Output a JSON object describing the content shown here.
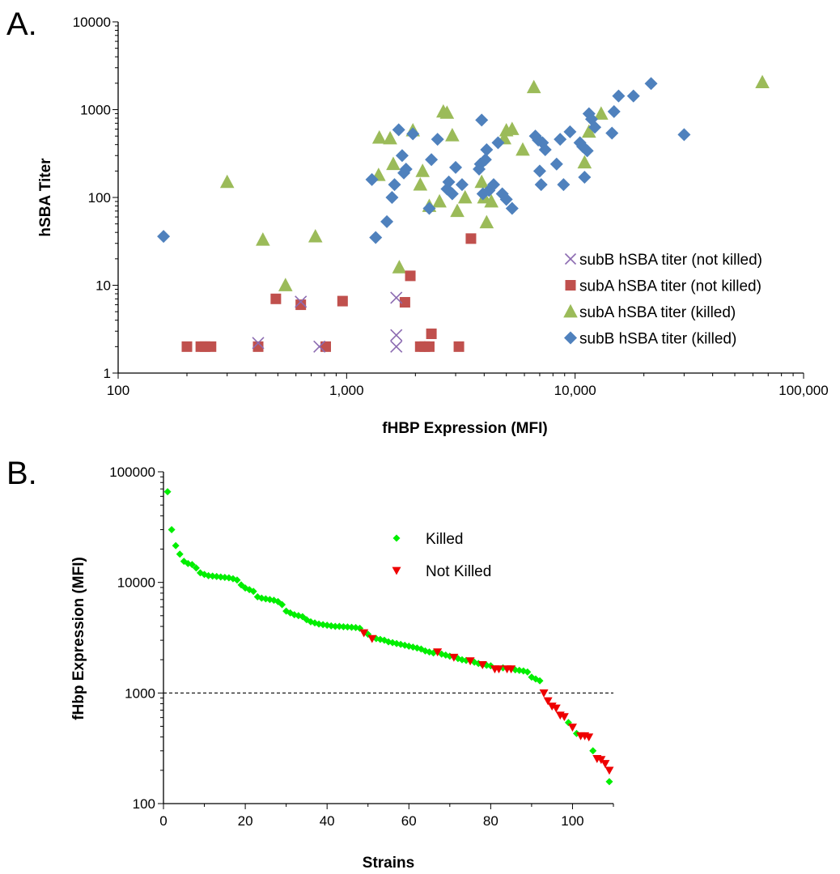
{
  "panels": {
    "a": {
      "letter": "A."
    },
    "b": {
      "letter": "B."
    }
  },
  "chart_data": [
    {
      "panel": "A.",
      "type": "scatter",
      "xlabel": "fHBP Expression (MFI)",
      "ylabel": "hSBA Titer",
      "xscale": "log",
      "yscale": "log",
      "xlim": [
        100,
        100000
      ],
      "ylim": [
        1,
        10000
      ],
      "xticks": [
        100,
        1000,
        10000,
        100000
      ],
      "xtick_labels": [
        "100",
        "1,000",
        "10,000",
        "100,000"
      ],
      "yticks": [
        1,
        10,
        100,
        1000,
        10000
      ],
      "ytick_labels": [
        "1",
        "10",
        "100",
        "1000",
        "10000"
      ],
      "grid": false,
      "legend_position": "bottom-right",
      "series": [
        {
          "name": "subB hSBA titer (not killed)",
          "marker": "x",
          "color": "#8c6bb1",
          "points": [
            [
              410,
              2.2
            ],
            [
              630,
              6.5
            ],
            [
              760,
              2
            ],
            [
              1650,
              2.7
            ],
            [
              1650,
              2
            ],
            [
              1650,
              7.2
            ]
          ]
        },
        {
          "name": "subA hSBA titer (not killed)",
          "marker": "square",
          "color": "#c0504d",
          "points": [
            [
              200,
              2
            ],
            [
              230,
              2
            ],
            [
              240,
              2
            ],
            [
              255,
              2
            ],
            [
              410,
              2
            ],
            [
              490,
              7
            ],
            [
              630,
              6
            ],
            [
              810,
              2
            ],
            [
              960,
              6.6
            ],
            [
              1800,
              6.4
            ],
            [
              1900,
              12.8
            ],
            [
              2100,
              2
            ],
            [
              2200,
              2
            ],
            [
              2300,
              2
            ],
            [
              2350,
              2.8
            ],
            [
              3100,
              2
            ],
            [
              3500,
              34
            ]
          ]
        },
        {
          "name": "subA hSBA titer (killed)",
          "marker": "triangle",
          "color": "#9bbb59",
          "points": [
            [
              300,
              150
            ],
            [
              430,
              33
            ],
            [
              540,
              10
            ],
            [
              730,
              36
            ],
            [
              1390,
              480
            ],
            [
              1380,
              180
            ],
            [
              1550,
              470
            ],
            [
              1600,
              240
            ],
            [
              1700,
              16
            ],
            [
              1950,
              580
            ],
            [
              2100,
              140
            ],
            [
              2150,
              200
            ],
            [
              2300,
              80
            ],
            [
              2550,
              90
            ],
            [
              2650,
              950
            ],
            [
              2750,
              920
            ],
            [
              2900,
              510
            ],
            [
              3050,
              70
            ],
            [
              3300,
              100
            ],
            [
              3900,
              150
            ],
            [
              4000,
              100
            ],
            [
              4100,
              52
            ],
            [
              4300,
              90
            ],
            [
              4900,
              470
            ],
            [
              5000,
              580
            ],
            [
              5300,
              600
            ],
            [
              5900,
              350
            ],
            [
              6600,
              1800
            ],
            [
              11000,
              250
            ],
            [
              11500,
              560
            ],
            [
              13000,
              900
            ],
            [
              66000,
              2050
            ]
          ]
        },
        {
          "name": "subB hSBA titer (killed)",
          "marker": "diamond",
          "color": "#4f81bd",
          "points": [
            [
              158,
              36
            ],
            [
              1290,
              160
            ],
            [
              1340,
              35
            ],
            [
              1500,
              53
            ],
            [
              1580,
              100
            ],
            [
              1620,
              140
            ],
            [
              1690,
              590
            ],
            [
              1750,
              300
            ],
            [
              1780,
              190
            ],
            [
              1820,
              210
            ],
            [
              1950,
              530
            ],
            [
              2300,
              75
            ],
            [
              2350,
              270
            ],
            [
              2500,
              460
            ],
            [
              2750,
              125
            ],
            [
              2800,
              150
            ],
            [
              2900,
              110
            ],
            [
              3000,
              220
            ],
            [
              3200,
              140
            ],
            [
              3800,
              210
            ],
            [
              3850,
              240
            ],
            [
              3900,
              760
            ],
            [
              3950,
              110
            ],
            [
              4050,
              270
            ],
            [
              4100,
              350
            ],
            [
              4200,
              120
            ],
            [
              4400,
              140
            ],
            [
              4600,
              420
            ],
            [
              4800,
              110
            ],
            [
              5000,
              95
            ],
            [
              5300,
              75
            ],
            [
              6700,
              500
            ],
            [
              6900,
              450
            ],
            [
              7000,
              200
            ],
            [
              7100,
              140
            ],
            [
              7200,
              420
            ],
            [
              7400,
              350
            ],
            [
              8300,
              240
            ],
            [
              8600,
              460
            ],
            [
              8900,
              140
            ],
            [
              9500,
              560
            ],
            [
              10500,
              420
            ],
            [
              10800,
              380
            ],
            [
              11000,
              170
            ],
            [
              11300,
              340
            ],
            [
              11500,
              900
            ],
            [
              11800,
              780
            ],
            [
              12200,
              630
            ],
            [
              14500,
              540
            ],
            [
              14800,
              950
            ],
            [
              15500,
              1430
            ],
            [
              18000,
              1430
            ],
            [
              21500,
              1980
            ],
            [
              30000,
              520
            ]
          ]
        }
      ]
    },
    {
      "panel": "B.",
      "type": "scatter",
      "xlabel": "Strains",
      "ylabel": "fHbp Expression (MFI)",
      "yscale": "log",
      "xlim": [
        0,
        110
      ],
      "ylim": [
        100,
        100000
      ],
      "xticks": [
        0,
        20,
        40,
        60,
        80,
        100
      ],
      "xtick_labels": [
        "0",
        "20",
        "40",
        "60",
        "80",
        "100"
      ],
      "yticks": [
        100,
        1000,
        10000,
        100000
      ],
      "ytick_labels": [
        "100",
        "1000",
        "10000",
        "100000"
      ],
      "grid": false,
      "legend_position": "top-center",
      "reference_line": {
        "y": 1000,
        "style": "dashed"
      },
      "series": [
        {
          "name": "Killed",
          "marker": "diamond",
          "color": "#00ee00",
          "points": [
            [
              1,
              66000
            ],
            [
              2,
              30000
            ],
            [
              3,
              21500
            ],
            [
              4,
              18000
            ],
            [
              5,
              15500
            ],
            [
              6,
              14800
            ],
            [
              7,
              14500
            ],
            [
              8,
              13500
            ],
            [
              9,
              12200
            ],
            [
              10,
              11800
            ],
            [
              11,
              11500
            ],
            [
              12,
              11400
            ],
            [
              13,
              11300
            ],
            [
              14,
              11200
            ],
            [
              15,
              11100
            ],
            [
              16,
              11000
            ],
            [
              17,
              10800
            ],
            [
              18,
              10500
            ],
            [
              19,
              9500
            ],
            [
              20,
              8900
            ],
            [
              21,
              8600
            ],
            [
              22,
              8300
            ],
            [
              23,
              7400
            ],
            [
              24,
              7200
            ],
            [
              25,
              7100
            ],
            [
              26,
              7000
            ],
            [
              27,
              6900
            ],
            [
              28,
              6700
            ],
            [
              29,
              6300
            ],
            [
              30,
              5500
            ],
            [
              31,
              5300
            ],
            [
              32,
              5100
            ],
            [
              33,
              5000
            ],
            [
              34,
              4900
            ],
            [
              35,
              4600
            ],
            [
              36,
              4400
            ],
            [
              37,
              4300
            ],
            [
              38,
              4200
            ],
            [
              39,
              4150
            ],
            [
              40,
              4100
            ],
            [
              41,
              4050
            ],
            [
              42,
              4000
            ],
            [
              43,
              4000
            ],
            [
              44,
              3970
            ],
            [
              45,
              3950
            ],
            [
              46,
              3930
            ],
            [
              47,
              3900
            ],
            [
              48,
              3850
            ],
            [
              50,
              3400
            ],
            [
              52,
              3100
            ],
            [
              53,
              3050
            ],
            [
              54,
              3000
            ],
            [
              55,
              2900
            ],
            [
              56,
              2850
            ],
            [
              57,
              2800
            ],
            [
              58,
              2750
            ],
            [
              59,
              2700
            ],
            [
              60,
              2650
            ],
            [
              61,
              2600
            ],
            [
              62,
              2550
            ],
            [
              63,
              2500
            ],
            [
              64,
              2400
            ],
            [
              65,
              2350
            ],
            [
              66,
              2300
            ],
            [
              68,
              2250
            ],
            [
              69,
              2200
            ],
            [
              70,
              2150
            ],
            [
              72,
              2050
            ],
            [
              73,
              2000
            ],
            [
              74,
              1970
            ],
            [
              76,
              1900
            ],
            [
              77,
              1850
            ],
            [
              78,
              1800
            ],
            [
              79,
              1780
            ],
            [
              80,
              1760
            ],
            [
              83,
              1690
            ],
            [
              86,
              1620
            ],
            [
              87,
              1600
            ],
            [
              88,
              1580
            ],
            [
              89,
              1550
            ],
            [
              90,
              1390
            ],
            [
              91,
              1340
            ],
            [
              92,
              1290
            ],
            [
              99,
              540
            ],
            [
              101,
              430
            ],
            [
              105,
              300
            ],
            [
              109,
              158
            ]
          ]
        },
        {
          "name": "Not Killed",
          "marker": "triangle-down",
          "color": "#ee0000",
          "points": [
            [
              49,
              3500
            ],
            [
              51,
              3100
            ],
            [
              67,
              2350
            ],
            [
              71,
              2100
            ],
            [
              75,
              1950
            ],
            [
              78,
              1800
            ],
            [
              81,
              1650
            ],
            [
              82,
              1650
            ],
            [
              84,
              1650
            ],
            [
              85,
              1650
            ],
            [
              93,
              1000
            ],
            [
              94,
              850
            ],
            [
              95,
              760
            ],
            [
              96,
              730
            ],
            [
              97,
              630
            ],
            [
              98,
              610
            ],
            [
              100,
              490
            ],
            [
              102,
              410
            ],
            [
              103,
              410
            ],
            [
              104,
              400
            ],
            [
              106,
              255
            ],
            [
              107,
              250
            ],
            [
              108,
              230
            ],
            [
              109,
              200
            ]
          ]
        }
      ]
    }
  ]
}
